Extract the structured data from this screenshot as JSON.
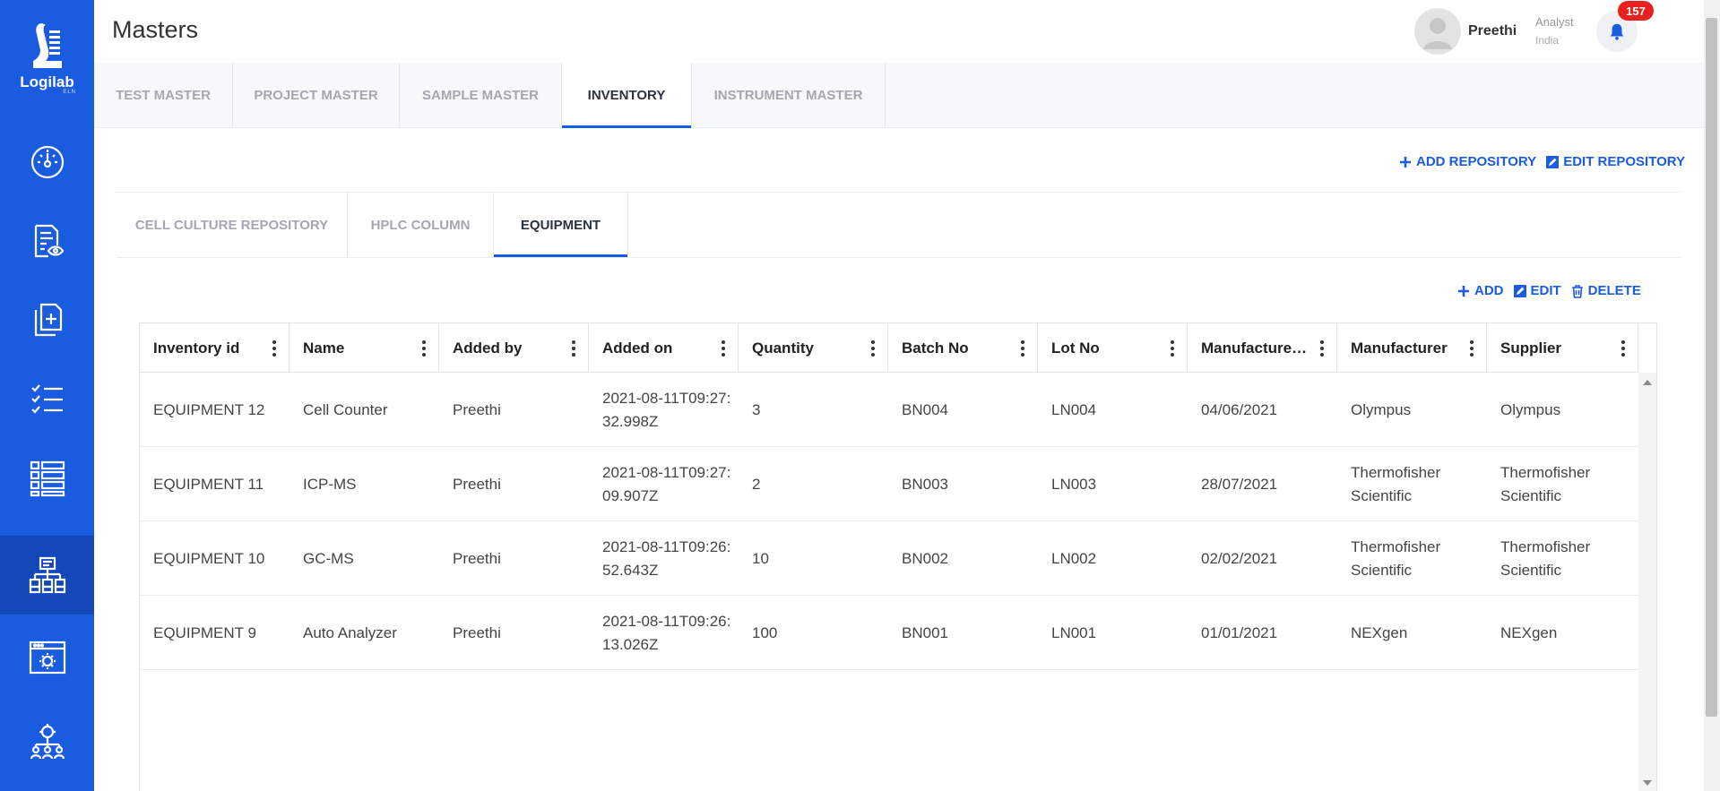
{
  "brand": {
    "name": "Logilab",
    "sub": "ELN"
  },
  "sidebar": {
    "items": [
      {
        "icon": "dashboard-gauge-icon"
      },
      {
        "icon": "document-view-icon"
      },
      {
        "icon": "copy-add-icon"
      },
      {
        "icon": "checklist-icon"
      },
      {
        "icon": "list-grid-icon"
      },
      {
        "icon": "hierarchy-icon",
        "active": true
      },
      {
        "icon": "browser-settings-icon"
      },
      {
        "icon": "team-settings-icon"
      }
    ]
  },
  "header": {
    "title": "Masters",
    "user": {
      "name": "Preethi",
      "role": "Analyst",
      "location": "India"
    },
    "notifications": "157"
  },
  "top_tabs": [
    "TEST MASTER",
    "PROJECT MASTER",
    "SAMPLE MASTER",
    "INVENTORY",
    "INSTRUMENT MASTER"
  ],
  "top_tab_active": "INVENTORY",
  "repo_actions": {
    "add": "ADD REPOSITORY",
    "edit": "EDIT REPOSITORY"
  },
  "sub_tabs": [
    "CELL CULTURE REPOSITORY",
    "HPLC COLUMN",
    "EQUIPMENT"
  ],
  "sub_tab_active": "EQUIPMENT",
  "table_actions": {
    "add": "ADD",
    "edit": "EDIT",
    "delete": "DELETE"
  },
  "table": {
    "columns": [
      "Inventory id",
      "Name",
      "Added by",
      "Added on",
      "Quantity",
      "Batch No",
      "Lot No",
      "Manufactured Date",
      "Manufacturer",
      "Supplier"
    ],
    "rows": [
      [
        "EQUIPMENT 12",
        "Cell Counter",
        "Preethi",
        "2021-08-11T09:27:32.998Z",
        "3",
        "BN004",
        "LN004",
        "04/06/2021",
        "Olympus",
        "Olympus"
      ],
      [
        "EQUIPMENT 11",
        "ICP-MS",
        "Preethi",
        "2021-08-11T09:27:09.907Z",
        "2",
        "BN003",
        "LN003",
        "28/07/2021",
        "Thermofisher Scientific",
        "Thermofisher Scientific"
      ],
      [
        "EQUIPMENT 10",
        "GC-MS",
        "Preethi",
        "2021-08-11T09:26:52.643Z",
        "10",
        "BN002",
        "LN002",
        "02/02/2021",
        "Thermofisher Scientific",
        "Thermofisher Scientific"
      ],
      [
        "EQUIPMENT 9",
        "Auto Analyzer",
        "Preethi",
        "2021-08-11T09:26:13.026Z",
        "100",
        "BN001",
        "LN001",
        "01/01/2021",
        "NEXgen",
        "NEXgen"
      ]
    ]
  }
}
